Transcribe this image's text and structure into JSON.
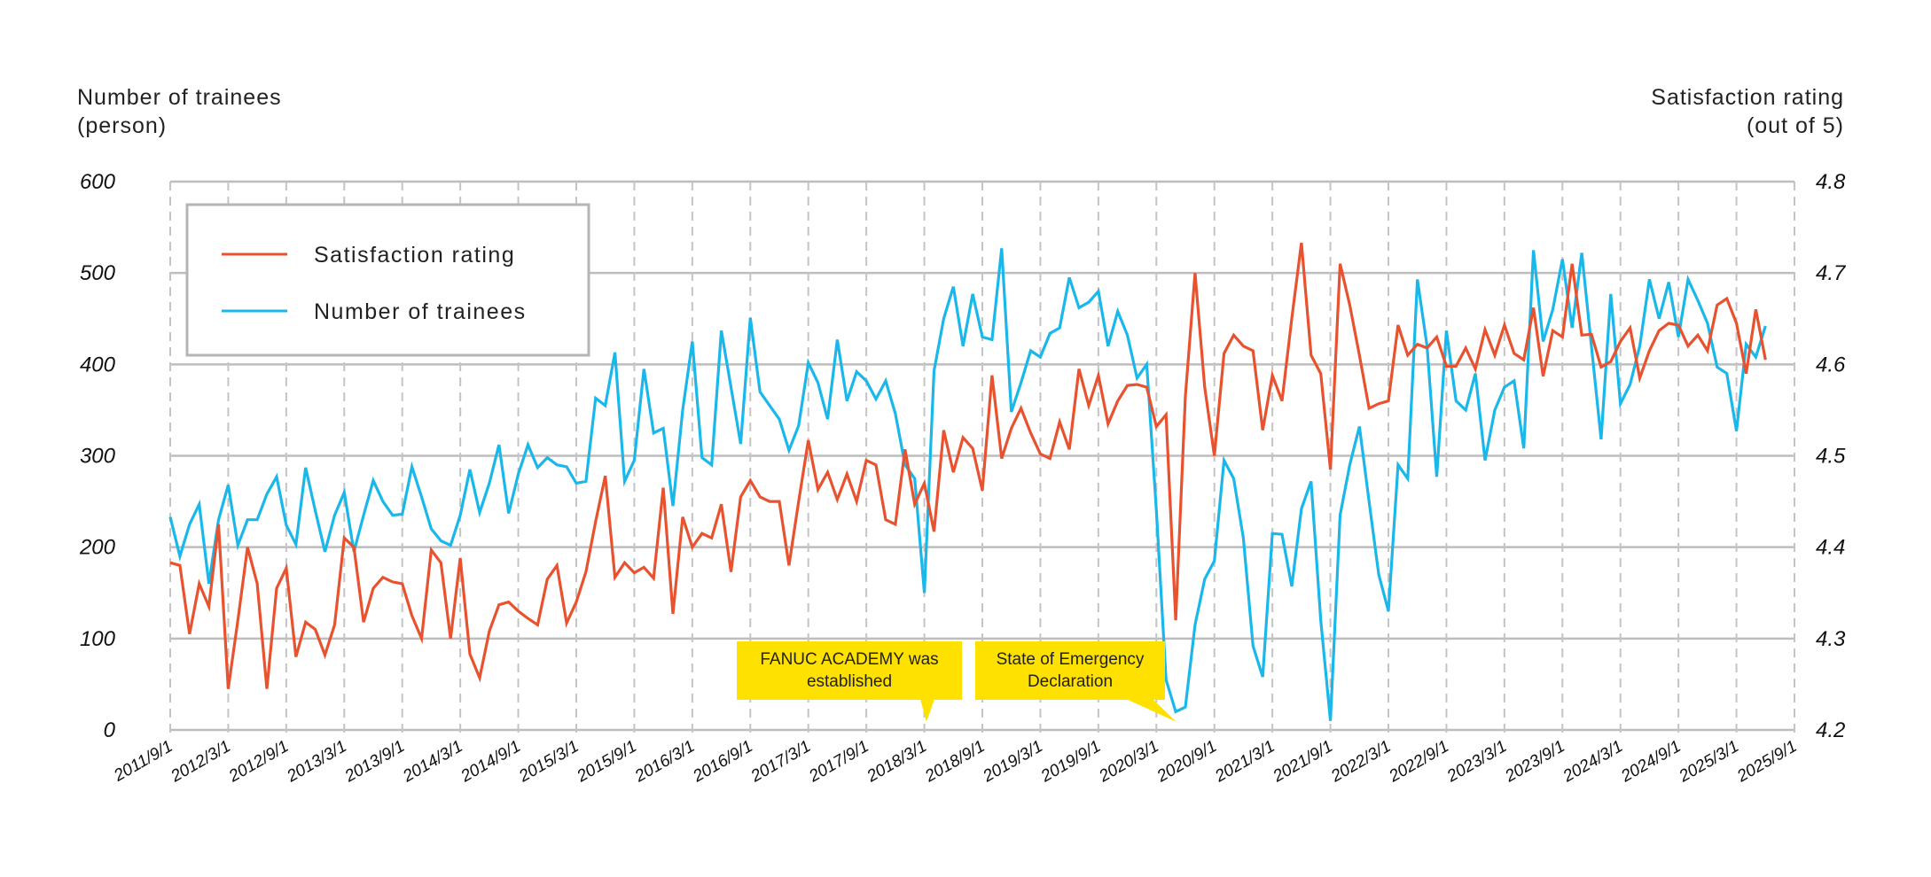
{
  "chart_data": {
    "type": "line",
    "left_axis": {
      "title_lines": [
        "Number of trainees",
        "(person)"
      ],
      "ylim": [
        0,
        600
      ],
      "ticks": [
        "0",
        "100",
        "200",
        "300",
        "400",
        "500",
        "600"
      ]
    },
    "right_axis": {
      "title_lines": [
        "Satisfaction rating",
        "(out of 5)"
      ],
      "ylim": [
        4.2,
        4.8
      ],
      "ticks": [
        "4.2",
        "4.3",
        "4.4",
        "4.5",
        "4.6",
        "4.7",
        "4.8"
      ]
    },
    "x_start": "2011/9",
    "x_end": "2025/6",
    "x_frequency": "monthly",
    "xticks": [
      "2011/9/1",
      "2012/3/1",
      "2012/9/1",
      "2013/3/1",
      "2013/9/1",
      "2014/3/1",
      "2014/9/1",
      "2015/3/1",
      "2015/9/1",
      "2016/3/1",
      "2016/9/1",
      "2017/3/1",
      "2017/9/1",
      "2018/3/1",
      "2018/9/1",
      "2019/3/1",
      "2019/9/1",
      "2020/3/1",
      "2020/9/1",
      "2021/3/1",
      "2021/9/1",
      "2022/3/1",
      "2022/9/1",
      "2023/3/1",
      "2023/9/1",
      "2024/3/1",
      "2024/9/1",
      "2025/3/1",
      "2025/9/1"
    ],
    "grid": {
      "horizontal": "solid",
      "vertical": "dashed"
    },
    "legend": {
      "placement": "top-left",
      "entries": [
        "Satisfaction rating",
        "Number of trainees"
      ]
    },
    "series": [
      {
        "name": "Satisfaction rating",
        "axis": "right",
        "color": "#e8522f",
        "values": [
          4.383,
          4.38,
          4.305,
          4.36,
          4.335,
          4.425,
          4.245,
          4.32,
          4.4,
          4.36,
          4.245,
          4.355,
          4.377,
          4.28,
          4.318,
          4.31,
          4.282,
          4.315,
          4.41,
          4.4,
          4.318,
          4.355,
          4.367,
          4.362,
          4.36,
          4.325,
          4.3,
          4.397,
          4.383,
          4.3,
          4.388,
          4.283,
          4.257,
          4.308,
          4.337,
          4.34,
          4.33,
          4.322,
          4.315,
          4.365,
          4.38,
          4.317,
          4.34,
          4.373,
          4.428,
          4.478,
          4.367,
          4.383,
          4.372,
          4.378,
          4.366,
          4.465,
          4.327,
          4.433,
          4.4,
          4.415,
          4.41,
          4.447,
          4.373,
          4.455,
          4.473,
          4.455,
          4.45,
          4.45,
          4.38,
          4.45,
          4.517,
          4.463,
          4.482,
          4.452,
          4.48,
          4.45,
          4.495,
          4.49,
          4.43,
          4.425,
          4.507,
          4.447,
          4.47,
          4.417,
          4.528,
          4.482,
          4.52,
          4.508,
          4.462,
          4.588,
          4.497,
          4.53,
          4.552,
          4.525,
          4.502,
          4.497,
          4.537,
          4.507,
          4.595,
          4.555,
          4.588,
          4.535,
          4.56,
          4.577,
          4.578,
          4.575,
          4.532,
          4.545,
          4.32,
          4.565,
          4.7,
          4.575,
          4.5,
          4.612,
          4.632,
          4.62,
          4.615,
          4.528,
          4.588,
          4.56,
          4.65,
          4.733,
          4.61,
          4.59,
          4.485,
          4.71,
          4.665,
          4.61,
          4.552,
          4.557,
          4.56,
          4.643,
          4.61,
          4.622,
          4.618,
          4.63,
          4.598,
          4.598,
          4.618,
          4.595,
          4.638,
          4.61,
          4.643,
          4.612,
          4.605,
          4.662,
          4.587,
          4.637,
          4.63,
          4.71,
          4.632,
          4.633,
          4.597,
          4.603,
          4.625,
          4.64,
          4.585,
          4.615,
          4.637,
          4.645,
          4.643,
          4.62,
          4.632,
          4.615,
          4.665,
          4.672,
          4.645,
          4.59,
          4.66,
          4.605
        ]
      },
      {
        "name": "Number of trainees",
        "axis": "left",
        "color": "#1ab8ea",
        "values": [
          233,
          190,
          225,
          247,
          160,
          230,
          268,
          202,
          230,
          230,
          258,
          277,
          224,
          203,
          287,
          240,
          195,
          235,
          260,
          195,
          235,
          273,
          250,
          235,
          236,
          288,
          255,
          220,
          207,
          202,
          235,
          285,
          238,
          270,
          312,
          237,
          280,
          312,
          287,
          298,
          290,
          288,
          270,
          272,
          363,
          355,
          413,
          272,
          295,
          395,
          325,
          330,
          245,
          350,
          425,
          298,
          290,
          437,
          375,
          313,
          451,
          370,
          355,
          340,
          306,
          333,
          402,
          380,
          340,
          427,
          360,
          392,
          382,
          362,
          382,
          346,
          290,
          275,
          150,
          393,
          450,
          485,
          420,
          477,
          430,
          427,
          527,
          348,
          380,
          415,
          408,
          434,
          440,
          495,
          462,
          468,
          480,
          420,
          458,
          432,
          385,
          400,
          240,
          55,
          20,
          25,
          115,
          165,
          185,
          295,
          275,
          210,
          92,
          58,
          215,
          214,
          157,
          242,
          272,
          120,
          10,
          235,
          290,
          332,
          250,
          170,
          130,
          290,
          275,
          493,
          420,
          277,
          437,
          360,
          350,
          390,
          295,
          350,
          375,
          382,
          308,
          525,
          425,
          460,
          515,
          440,
          522,
          420,
          318,
          477,
          357,
          378,
          420,
          493,
          450,
          490,
          430,
          493,
          470,
          445,
          397,
          390,
          327,
          422,
          408,
          442
        ]
      }
    ],
    "annotations": [
      {
        "lines": [
          "FANUC ACADEMY was",
          "established"
        ],
        "points_to": "2018/3",
        "color": "#ffe100"
      },
      {
        "lines": [
          "State of Emergency",
          "Declaration"
        ],
        "points_to": "2020/4",
        "color": "#ffe100"
      }
    ]
  }
}
